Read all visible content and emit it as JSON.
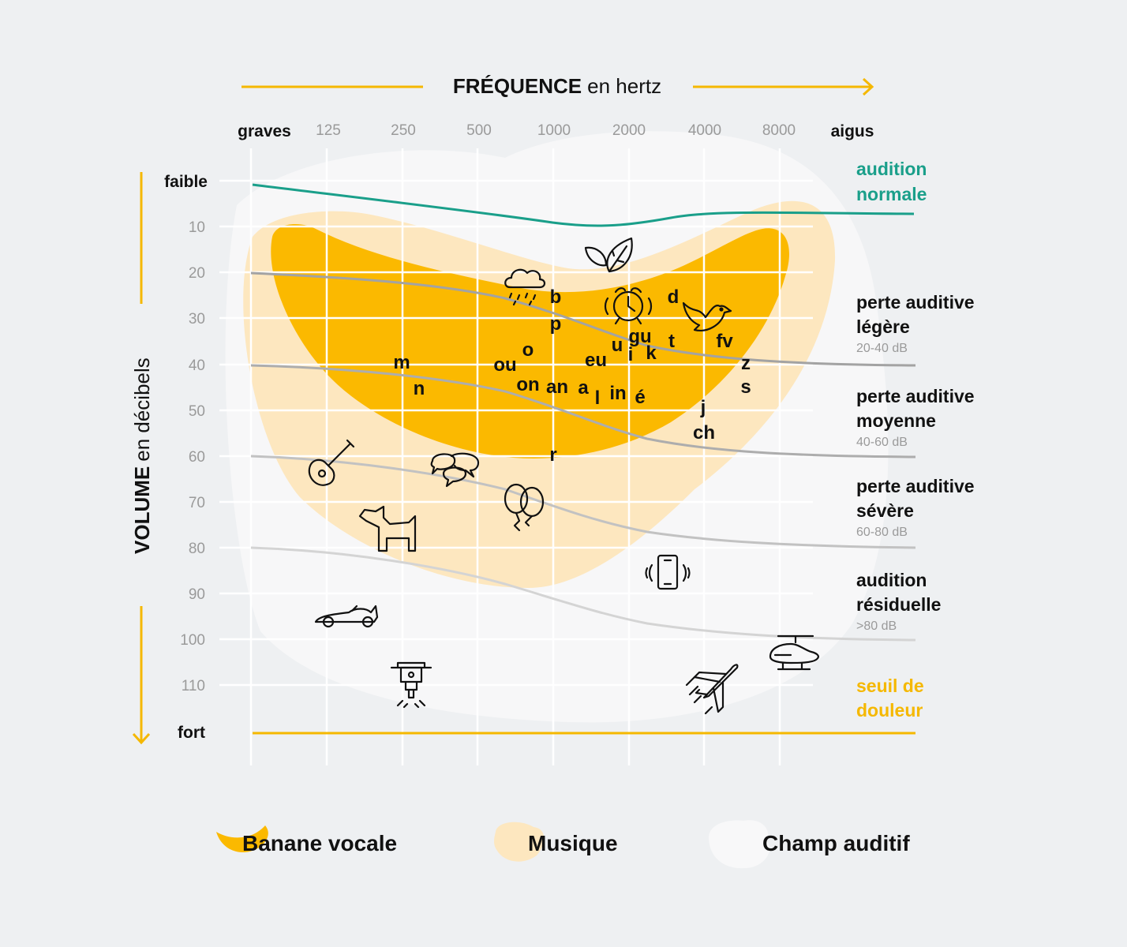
{
  "header": {
    "frequency_title_bold": "FRÉQUENCE",
    "frequency_title_rest": "en hertz",
    "volume_title_bold": "VOLUME",
    "volume_title_rest": "en décibels"
  },
  "x_axis": {
    "low_label": "graves",
    "high_label": "aigus",
    "ticks": [
      "125",
      "250",
      "500",
      "1000",
      "2000",
      "4000",
      "8000"
    ]
  },
  "y_axis": {
    "top_label": "faible",
    "bottom_label": "fort",
    "ticks": [
      "10",
      "20",
      "30",
      "40",
      "50",
      "60",
      "70",
      "80",
      "90",
      "100",
      "110"
    ]
  },
  "zones": {
    "normal": {
      "line1": "audition",
      "line2": "normale"
    },
    "light": {
      "line1": "perte auditive",
      "line2": "légère",
      "range": "20-40 dB"
    },
    "medium": {
      "line1": "perte auditive",
      "line2": "moyenne",
      "range": "40-60 dB"
    },
    "severe": {
      "line1": "perte auditive",
      "line2": "sévère",
      "range": "60-80 dB"
    },
    "residual": {
      "line1": "audition",
      "line2": "résiduelle",
      "range": ">80 dB"
    },
    "pain": {
      "line1": "seuil de",
      "line2": "douleur"
    }
  },
  "phonemes": [
    "b",
    "p",
    "d",
    "o",
    "ou",
    "gu",
    "u",
    "i",
    "k",
    "t",
    "fv",
    "eu",
    "z",
    "s",
    "m",
    "n",
    "on",
    "an",
    "a",
    "l",
    "in",
    "é",
    "j",
    "ch",
    "r"
  ],
  "icons": [
    "rain-cloud-icon",
    "leaves-icon",
    "alarm-clock-icon",
    "bird-icon",
    "guitar-icon",
    "speech-bubbles-icon",
    "balloons-icon",
    "dog-icon",
    "vibrating-phone-icon",
    "race-car-icon",
    "jackhammer-icon",
    "airplane-icon",
    "helicopter-icon"
  ],
  "legend": {
    "speech_banana": "Banane vocale",
    "music": "Musique",
    "auditory_field": "Champ auditif"
  },
  "colors": {
    "background": "#eef0f2",
    "auditory_field": "#f7f7f8",
    "music": "#fde7bf",
    "speech_banana": "#fbb900",
    "accent": "#f5b800",
    "normal_hearing": "#1a9f8a",
    "text": "#111111",
    "tick": "#999999"
  }
}
